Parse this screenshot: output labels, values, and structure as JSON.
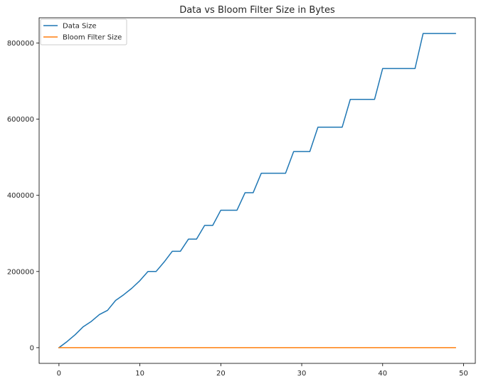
{
  "chart_data": {
    "type": "line",
    "title": "Data vs Bloom Filter Size in Bytes",
    "xlabel": "",
    "ylabel": "",
    "xlim": [
      -2.45,
      51.45
    ],
    "ylim": [
      -41250,
      866250
    ],
    "x_ticks": [
      0,
      10,
      20,
      30,
      40,
      50
    ],
    "y_ticks": [
      0,
      200000,
      400000,
      600000,
      800000
    ],
    "x_tick_labels": [
      "0",
      "10",
      "20",
      "30",
      "40",
      "50"
    ],
    "y_tick_labels": [
      "0",
      "200000",
      "400000",
      "600000",
      "800000"
    ],
    "grid": false,
    "legend_position": "upper-left",
    "series": [
      {
        "name": "Data Size",
        "color": "#1f77b4",
        "x": [
          0,
          1,
          2,
          3,
          4,
          5,
          6,
          7,
          8,
          9,
          10,
          11,
          12,
          13,
          14,
          15,
          16,
          17,
          18,
          19,
          20,
          21,
          22,
          23,
          24,
          25,
          26,
          27,
          28,
          29,
          30,
          31,
          32,
          33,
          34,
          35,
          36,
          37,
          38,
          39,
          40,
          41,
          42,
          43,
          44,
          45,
          46,
          47,
          48,
          49
        ],
        "y": [
          0,
          16000,
          34000,
          55000,
          69000,
          87000,
          98000,
          124000,
          139000,
          156000,
          176000,
          200000,
          200000,
          225000,
          253000,
          253000,
          285000,
          285000,
          321000,
          321000,
          361000,
          361000,
          361000,
          407000,
          407000,
          458000,
          458000,
          458000,
          458000,
          515000,
          515000,
          515000,
          579000,
          579000,
          579000,
          579000,
          652000,
          652000,
          652000,
          652000,
          733000,
          733000,
          733000,
          733000,
          733000,
          825000,
          825000,
          825000,
          825000,
          825000
        ]
      },
      {
        "name": "Bloom Filter Size",
        "color": "#ff7f0e",
        "x": [
          0,
          1,
          2,
          3,
          4,
          5,
          6,
          7,
          8,
          9,
          10,
          11,
          12,
          13,
          14,
          15,
          16,
          17,
          18,
          19,
          20,
          21,
          22,
          23,
          24,
          25,
          26,
          27,
          28,
          29,
          30,
          31,
          32,
          33,
          34,
          35,
          36,
          37,
          38,
          39,
          40,
          41,
          42,
          43,
          44,
          45,
          46,
          47,
          48,
          49
        ],
        "y": [
          0,
          0,
          0,
          0,
          0,
          0,
          0,
          0,
          0,
          0,
          0,
          0,
          0,
          0,
          0,
          0,
          0,
          0,
          0,
          0,
          0,
          0,
          0,
          0,
          0,
          0,
          0,
          0,
          0,
          0,
          0,
          0,
          0,
          0,
          0,
          0,
          0,
          0,
          0,
          0,
          0,
          0,
          0,
          0,
          0,
          0,
          0,
          0,
          0,
          0
        ]
      }
    ]
  }
}
